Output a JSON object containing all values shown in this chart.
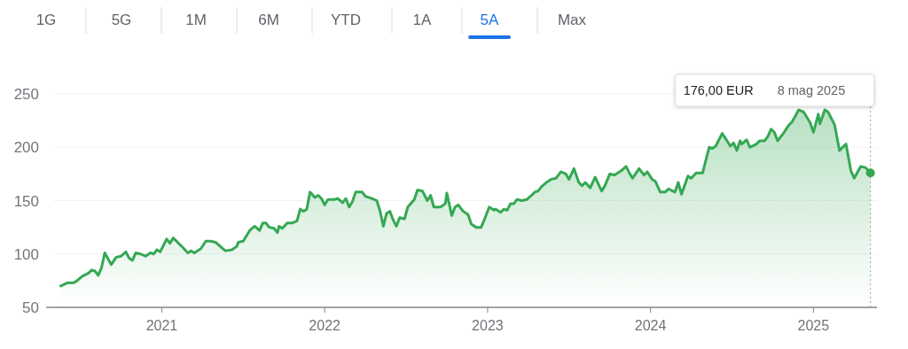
{
  "chart_data": {
    "type": "area",
    "x": [
      2020.38,
      2020.42,
      2020.46,
      2020.48,
      2020.51,
      2020.55,
      2020.57,
      2020.59,
      2020.61,
      2020.63,
      2020.65,
      2020.69,
      2020.72,
      2020.75,
      2020.78,
      2020.8,
      2020.82,
      2020.84,
      2020.87,
      2020.9,
      2020.93,
      2020.95,
      2020.97,
      2020.99,
      2021.03,
      2021.05,
      2021.07,
      2021.13,
      2021.16,
      2021.18,
      2021.2,
      2021.24,
      2021.27,
      2021.3,
      2021.33,
      2021.36,
      2021.39,
      2021.43,
      2021.46,
      2021.47,
      2021.5,
      2021.54,
      2021.57,
      2021.6,
      2021.62,
      2021.64,
      2021.66,
      2021.69,
      2021.71,
      2021.72,
      2021.74,
      2021.77,
      2021.8,
      2021.83,
      2021.85,
      2021.87,
      2021.89,
      2021.91,
      2021.94,
      2021.96,
      2021.98,
      2022.0,
      2022.02,
      2022.06,
      2022.08,
      2022.11,
      2022.13,
      2022.15,
      2022.17,
      2022.19,
      2022.23,
      2022.25,
      2022.29,
      2022.32,
      2022.34,
      2022.36,
      2022.38,
      2022.4,
      2022.42,
      2022.44,
      2022.46,
      2022.49,
      2022.51,
      2022.55,
      2022.57,
      2022.6,
      2022.63,
      2022.65,
      2022.67,
      2022.71,
      2022.74,
      2022.75,
      2022.78,
      2022.8,
      2022.82,
      2022.85,
      2022.88,
      2022.9,
      2022.93,
      2022.96,
      2022.98,
      2023.01,
      2023.04,
      2023.05,
      2023.08,
      2023.1,
      2023.12,
      2023.14,
      2023.16,
      2023.18,
      2023.21,
      2023.24,
      2023.27,
      2023.29,
      2023.31,
      2023.33,
      2023.36,
      2023.39,
      2023.42,
      2023.45,
      2023.48,
      2023.5,
      2023.53,
      2023.56,
      2023.58,
      2023.6,
      2023.63,
      2023.66,
      2023.7,
      2023.72,
      2023.75,
      2023.78,
      2023.82,
      2023.85,
      2023.87,
      2023.89,
      2023.93,
      2023.96,
      2023.98,
      2024.01,
      2024.03,
      2024.06,
      2024.09,
      2024.11,
      2024.15,
      2024.17,
      2024.19,
      2024.23,
      2024.25,
      2024.28,
      2024.32,
      2024.33,
      2024.36,
      2024.38,
      2024.4,
      2024.44,
      2024.47,
      2024.49,
      2024.51,
      2024.53,
      2024.55,
      2024.56,
      2024.59,
      2024.61,
      2024.65,
      2024.67,
      2024.7,
      2024.72,
      2024.74,
      2024.76,
      2024.78,
      2024.81,
      2024.82,
      2024.85,
      2024.87,
      2024.91,
      2024.94,
      2024.98,
      2025.0,
      2025.03,
      2025.04,
      2025.07,
      2025.09,
      2025.13,
      2025.16,
      2025.2,
      2025.23,
      2025.25,
      2025.29,
      2025.32,
      2025.35
    ],
    "series": [
      {
        "color": "#34a853",
        "values": [
          70,
          73,
          73,
          75,
          79,
          82,
          85,
          84,
          80,
          87,
          101,
          90,
          97,
          98,
          102,
          96,
          94,
          101,
          100,
          98,
          101,
          100,
          104,
          102,
          114,
          110,
          115,
          106,
          101,
          103,
          101,
          105,
          112,
          112,
          111,
          107,
          103,
          104,
          107,
          111,
          112,
          122,
          126,
          122,
          129,
          129,
          125,
          124,
          120,
          126,
          124,
          129,
          129,
          131,
          142,
          140,
          142,
          158,
          153,
          155,
          152,
          146,
          151,
          151,
          152,
          148,
          152,
          144,
          149,
          158,
          158,
          154,
          152,
          150,
          140,
          126,
          138,
          140,
          132,
          126,
          134,
          133,
          144,
          151,
          160,
          159,
          150,
          155,
          144,
          144,
          147,
          157,
          136,
          144,
          146,
          140,
          137,
          128,
          125,
          125,
          132,
          144,
          141,
          142,
          139,
          142,
          141,
          147,
          147,
          151,
          150,
          151,
          155,
          158,
          159,
          163,
          167,
          170,
          171,
          177,
          175,
          170,
          180,
          167,
          164,
          167,
          162,
          172,
          159,
          164,
          175,
          174,
          178,
          182,
          176,
          171,
          180,
          174,
          177,
          170,
          168,
          158,
          158,
          161,
          158,
          167,
          156,
          173,
          171,
          176,
          176,
          182,
          200,
          199,
          201,
          213,
          206,
          201,
          204,
          197,
          206,
          203,
          207,
          200,
          203,
          206,
          206,
          210,
          217,
          214,
          206,
          212,
          214,
          221,
          224,
          235,
          233,
          223,
          214,
          231,
          222,
          235,
          233,
          221,
          197,
          203,
          178,
          171,
          182,
          181,
          176
        ]
      }
    ],
    "xlim": [
      2020.29,
      2025.39
    ],
    "xticks": [
      2021,
      2022,
      2023,
      2024,
      2025
    ],
    "ylim": [
      50,
      250
    ],
    "yticks": [
      50,
      100,
      150,
      200,
      250
    ],
    "grid": "y",
    "ref_lines": [
      {
        "axis": "x",
        "value": 2025.35,
        "color": "#9aa0a6",
        "line_style": "dotted"
      }
    ],
    "annotations": [
      "1G",
      "5G",
      "1M",
      "6M",
      "YTD",
      "1A",
      "5A",
      "Max",
      {
        "text": "176,00 EUR"
      },
      {
        "text": "8 mag 2025"
      }
    ]
  }
}
